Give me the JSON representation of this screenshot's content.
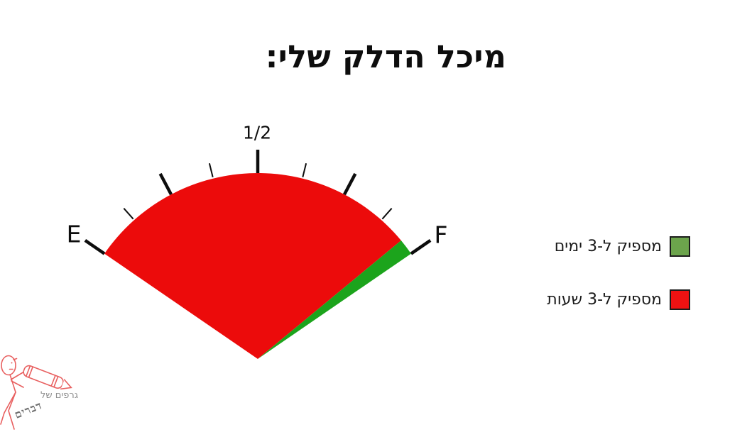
{
  "chart_data": {
    "type": "pie",
    "variant": "gauge",
    "title": "מיכל הדלק שלי:",
    "span_degrees": 111,
    "num_ticks": 9,
    "tick_labels": {
      "start": "E",
      "middle": "1/2",
      "end": "F"
    },
    "segments": [
      {
        "name": "מספיק ל-3 שעות",
        "fraction": 0.954,
        "color": "#ec0b0b"
      },
      {
        "name": "מספיק ל-3 ימים",
        "fraction": 0.046,
        "color": "#1ca41c"
      }
    ],
    "tick_color": "#0d0d0d",
    "legend_position": "right"
  },
  "legend": {
    "items": [
      {
        "label": "מספיק ל-3 ימים",
        "swatch_color": "#6ca44c"
      },
      {
        "label": "מספיק ל-3 שעות",
        "swatch_color": "#ee1212"
      }
    ]
  },
  "watermark": {
    "line1": "גרפים של",
    "line2": "דברים"
  }
}
